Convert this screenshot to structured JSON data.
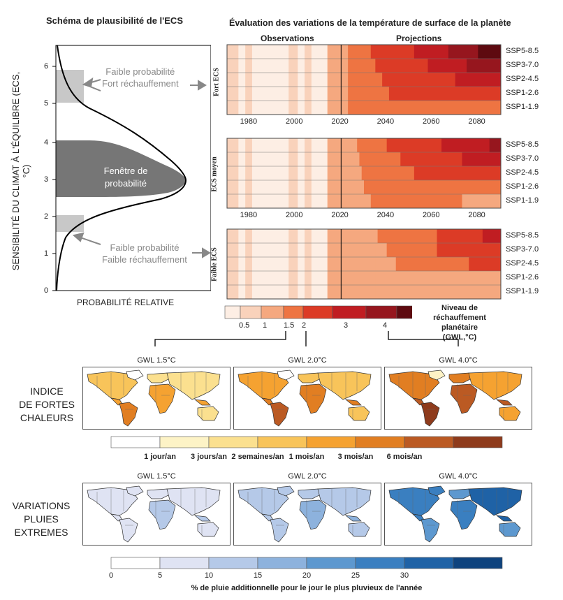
{
  "left_panel": {
    "title": "Schéma de plausibilité de l'ECS",
    "y_axis_label": "SENSIBILITÉ DU CLIMAT À L'ÉQUILIBRE (ECS, °C)",
    "x_axis_label": "PROBABILITÉ RELATIVE",
    "y_ticks": [
      "0",
      "1",
      "2",
      "3",
      "4",
      "5",
      "6"
    ],
    "window_label_line1": "Fenêtre de",
    "window_label_line2": "probabilité",
    "high_label_line1": "Faible probabilité",
    "high_label_line2": "Fort réchauffement",
    "low_label_line1": "Faible probabilité",
    "low_label_line2": "Faible réchauffement"
  },
  "right_panel": {
    "title": "Évaluation des variations de la température de surface de la planète",
    "observations_label": "Observations",
    "projections_label": "Projections",
    "x_ticks": [
      "1980",
      "2000",
      "2020",
      "2040",
      "2060",
      "2080"
    ],
    "scenarios": [
      "SSP5-8.5",
      "SSP3-7.0",
      "SSP2-4.5",
      "SSP1-2.6",
      "SSP1-1.9"
    ],
    "panels": [
      {
        "label": "Fort ECS"
      },
      {
        "label": "ECS moyen"
      },
      {
        "label": "Faible ECS"
      }
    ]
  },
  "gwl_legend": {
    "title_line1": "Niveau de",
    "title_line2": "réchauffement planétaire",
    "title_line3": "(GWL,°C)",
    "ticks": [
      "0.5",
      "1",
      "1.5",
      "2",
      "3",
      "4"
    ],
    "colors": [
      "#fdeee4",
      "#f9d2bb",
      "#f5a87f",
      "#ee7442",
      "#dc3b26",
      "#c01d22",
      "#96161e",
      "#5e0a10"
    ]
  },
  "heat": {
    "row_label_line1": "INDICE",
    "row_label_line2": "DE FORTES",
    "row_label_line3": "CHALEURS",
    "maps": [
      "GWL 1.5°C",
      "GWL 2.0°C",
      "GWL 4.0°C"
    ],
    "legend_ticks": [
      "1 jour/an",
      "3 jours/an",
      "2 semaines/an",
      "1 mois/an",
      "3 mois/an",
      "6 mois/an"
    ],
    "colors": [
      "#ffffff",
      "#fdf3c6",
      "#fbe08f",
      "#f8c45a",
      "#f5a231",
      "#e17e22",
      "#bb5a23",
      "#8e3b1c"
    ]
  },
  "rain": {
    "row_label_line1": "VARIATIONS",
    "row_label_line2": "PLUIES",
    "row_label_line3": "EXTREMES",
    "maps": [
      "GWL 1.5°C",
      "GWL 2.0°C",
      "GWL 4.0°C"
    ],
    "legend_ticks": [
      "0",
      "5",
      "10",
      "15",
      "20",
      "25",
      "30"
    ],
    "legend_title": "% de pluie additionnelle pour le jour le plus pluvieux de l'année",
    "colors": [
      "#ffffff",
      "#dfe3f3",
      "#b5c9e8",
      "#8db2dd",
      "#5d98cf",
      "#3a7fc0",
      "#1f62a6",
      "#0f437e"
    ]
  }
}
